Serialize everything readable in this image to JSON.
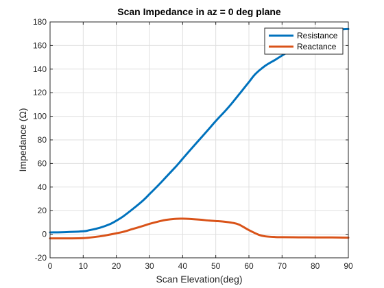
{
  "chart_data": {
    "type": "line",
    "title": "Scan Impedance in az = 0 deg plane",
    "xlabel": "Scan Elevation(deg)",
    "ylabel": "Impedance (Ω)",
    "xlim": [
      0,
      90
    ],
    "ylim": [
      -20,
      180
    ],
    "xticks": [
      0,
      10,
      20,
      30,
      40,
      50,
      60,
      70,
      80,
      90
    ],
    "yticks": [
      -20,
      0,
      20,
      40,
      60,
      80,
      100,
      120,
      140,
      160,
      180
    ],
    "grid": true,
    "legend_position": "top-right",
    "series": [
      {
        "name": "Resistance",
        "color": "#0072BD",
        "x": [
          0,
          5,
          10,
          12,
          15,
          18,
          20,
          22,
          25,
          28,
          30,
          33,
          35,
          38,
          40,
          42,
          45,
          48,
          50,
          53,
          55,
          58,
          60,
          62,
          65,
          68,
          70,
          73,
          75,
          78,
          80,
          83,
          85,
          88,
          90
        ],
        "y": [
          1.5,
          1.8,
          2.5,
          3.5,
          5.5,
          8.5,
          11.5,
          15,
          21.5,
          28.5,
          34,
          42.5,
          48.5,
          57.5,
          64,
          70.5,
          80,
          89.5,
          96,
          105,
          111.5,
          122,
          129,
          136,
          143,
          148,
          151.5,
          156.5,
          159,
          161.5,
          163,
          166,
          170,
          173.5,
          174
        ]
      },
      {
        "name": "Reactance",
        "color": "#D95319",
        "x": [
          0,
          5,
          10,
          15,
          18,
          20,
          22,
          25,
          28,
          30,
          33,
          35,
          38,
          40,
          42,
          45,
          48,
          50,
          52,
          55,
          57,
          60,
          63,
          65,
          68,
          70,
          75,
          80,
          85,
          90
        ],
        "y": [
          -3.5,
          -3.5,
          -3.3,
          -1.8,
          -0.3,
          0.8,
          2,
          4.5,
          7,
          8.8,
          11,
          12.2,
          13.1,
          13.2,
          13,
          12.4,
          11.6,
          11.2,
          10.8,
          9.7,
          8.2,
          3.5,
          -0.5,
          -1.8,
          -2.4,
          -2.5,
          -2.6,
          -2.7,
          -2.7,
          -2.9
        ]
      }
    ]
  }
}
